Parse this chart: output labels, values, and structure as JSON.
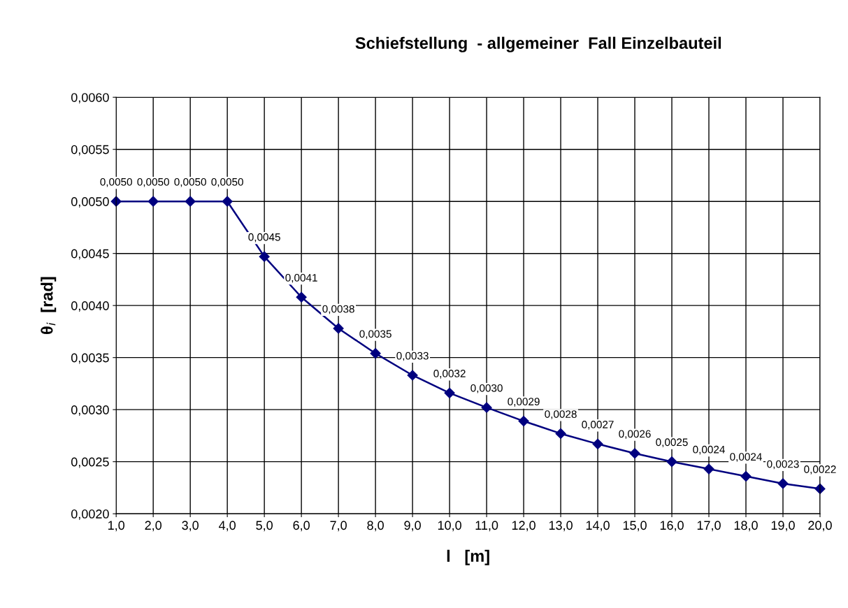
{
  "chart_data": {
    "type": "line",
    "title": "Schiefstellung  - allgemeiner  Fall Einzelbauteil",
    "xlabel": "l   [m]",
    "ylabel": "θ$_{i}$  [rad]",
    "x": [
      1,
      2,
      3,
      4,
      5,
      6,
      7,
      8,
      9,
      10,
      11,
      12,
      13,
      14,
      15,
      16,
      17,
      18,
      19,
      20
    ],
    "series": [
      {
        "color": "#00007f",
        "values": [
          0.005,
          0.005,
          0.005,
          0.005,
          0.00447,
          0.00408,
          0.00378,
          0.00354,
          0.00333,
          0.00316,
          0.00302,
          0.00289,
          0.00277,
          0.00267,
          0.00258,
          0.0025,
          0.00243,
          0.00236,
          0.00229,
          0.00224
        ],
        "value_labels": [
          "0,0050",
          "0,0050",
          "0,0050",
          "0,0050",
          "0,0045",
          "0,0041",
          "0,0038",
          "0,0035",
          "0,0033",
          "0,0032",
          "0,0030",
          "0,0029",
          "0,0028",
          "0,0027",
          "0,0026",
          "0,0025",
          "0,0024",
          "0,0024",
          "0,0023",
          "0,0022"
        ]
      }
    ],
    "xlim": [
      1,
      20
    ],
    "xticks": [
      {
        "value": 1,
        "label": "1,0"
      },
      {
        "value": 2,
        "label": "2,0"
      },
      {
        "value": 3,
        "label": "3,0"
      },
      {
        "value": 4,
        "label": "4,0"
      },
      {
        "value": 5,
        "label": "5,0"
      },
      {
        "value": 6,
        "label": "6,0"
      },
      {
        "value": 7,
        "label": "7,0"
      },
      {
        "value": 8,
        "label": "8,0"
      },
      {
        "value": 9,
        "label": "9,0"
      },
      {
        "value": 10,
        "label": "10,0"
      },
      {
        "value": 11,
        "label": "11,0"
      },
      {
        "value": 12,
        "label": "12,0"
      },
      {
        "value": 13,
        "label": "13,0"
      },
      {
        "value": 14,
        "label": "14,0"
      },
      {
        "value": 15,
        "label": "15,0"
      },
      {
        "value": 16,
        "label": "16,0"
      },
      {
        "value": 17,
        "label": "17,0"
      },
      {
        "value": 18,
        "label": "18,0"
      },
      {
        "value": 19,
        "label": "19,0"
      },
      {
        "value": 20,
        "label": "20,0"
      }
    ],
    "ylim": [
      0.002,
      0.006
    ],
    "yticks": [
      {
        "value": 0.002,
        "label": "0,0020"
      },
      {
        "value": 0.0025,
        "label": "0,0025"
      },
      {
        "value": 0.003,
        "label": "0,0030"
      },
      {
        "value": 0.0035,
        "label": "0,0035"
      },
      {
        "value": 0.004,
        "label": "0,0040"
      },
      {
        "value": 0.0045,
        "label": "0,0045"
      },
      {
        "value": 0.005,
        "label": "0,0050"
      },
      {
        "value": 0.0055,
        "label": "0,0055"
      },
      {
        "value": 0.006,
        "label": "0,0060"
      }
    ],
    "grid": true,
    "marker": "diamond",
    "line_style": "solid"
  }
}
